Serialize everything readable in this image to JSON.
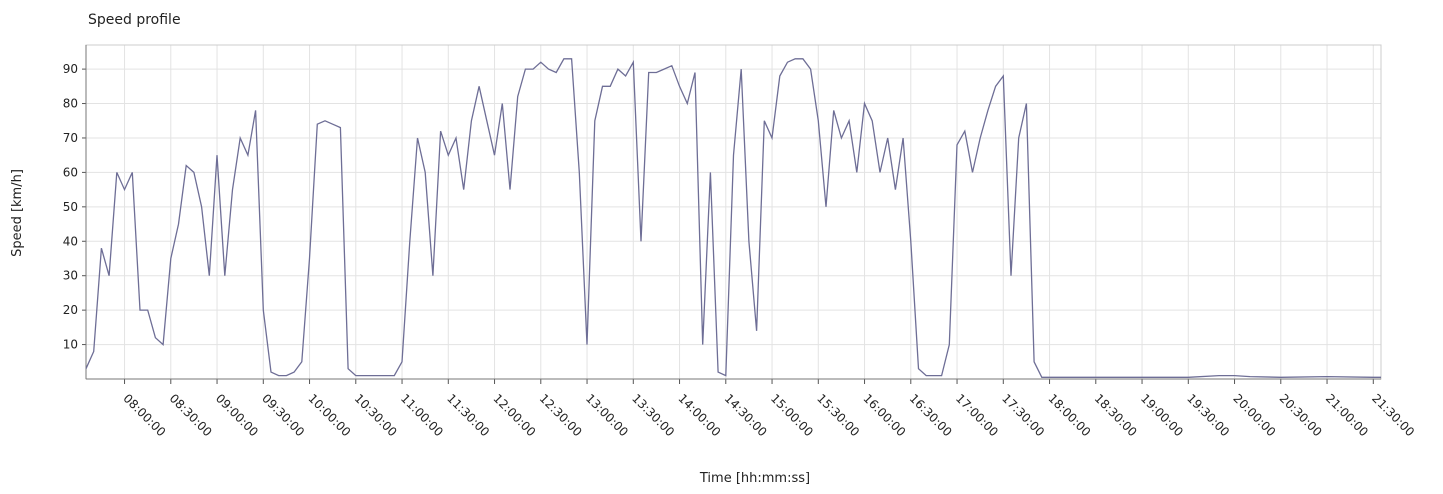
{
  "chart_data": {
    "type": "line",
    "title": "Speed profile",
    "x_label": "Time  [hh:mm:ss]",
    "y_label": "Speed [km/h]",
    "xlim": [
      "07:35:00",
      "21:35:00"
    ],
    "xticks": [
      "08:00:00",
      "08:30:00",
      "09:00:00",
      "09:30:00",
      "10:00:00",
      "10:30:00",
      "11:00:00",
      "11:30:00",
      "12:00:00",
      "12:30:00",
      "13:00:00",
      "13:30:00",
      "14:00:00",
      "14:30:00",
      "15:00:00",
      "15:30:00",
      "16:00:00",
      "16:30:00",
      "17:00:00",
      "17:30:00",
      "18:00:00",
      "18:30:00",
      "19:00:00",
      "19:30:00",
      "20:00:00",
      "20:30:00",
      "21:00:00",
      "21:30:00"
    ],
    "ylim": [
      0,
      97
    ],
    "yticks": [
      10,
      20,
      30,
      40,
      50,
      60,
      70,
      80,
      90
    ],
    "grid": true,
    "series": [
      {
        "name": "Speed",
        "color": "#6e6e96",
        "x": [
          "07:35:00",
          "07:40:00",
          "07:45:00",
          "07:50:00",
          "07:55:00",
          "08:00:00",
          "08:05:00",
          "08:10:00",
          "08:15:00",
          "08:20:00",
          "08:25:00",
          "08:30:00",
          "08:35:00",
          "08:40:00",
          "08:45:00",
          "08:50:00",
          "08:55:00",
          "09:00:00",
          "09:05:00",
          "09:10:00",
          "09:15:00",
          "09:20:00",
          "09:25:00",
          "09:30:00",
          "09:35:00",
          "09:40:00",
          "09:45:00",
          "09:50:00",
          "09:55:00",
          "10:00:00",
          "10:05:00",
          "10:10:00",
          "10:15:00",
          "10:20:00",
          "10:25:00",
          "10:30:00",
          "10:35:00",
          "10:40:00",
          "10:45:00",
          "10:50:00",
          "10:55:00",
          "11:00:00",
          "11:05:00",
          "11:10:00",
          "11:15:00",
          "11:20:00",
          "11:25:00",
          "11:30:00",
          "11:35:00",
          "11:40:00",
          "11:45:00",
          "11:50:00",
          "11:55:00",
          "12:00:00",
          "12:05:00",
          "12:10:00",
          "12:15:00",
          "12:20:00",
          "12:25:00",
          "12:30:00",
          "12:35:00",
          "12:40:00",
          "12:45:00",
          "12:50:00",
          "12:55:00",
          "13:00:00",
          "13:05:00",
          "13:10:00",
          "13:15:00",
          "13:20:00",
          "13:25:00",
          "13:30:00",
          "13:35:00",
          "13:40:00",
          "13:45:00",
          "13:50:00",
          "13:55:00",
          "14:00:00",
          "14:05:00",
          "14:10:00",
          "14:15:00",
          "14:20:00",
          "14:25:00",
          "14:30:00",
          "14:35:00",
          "14:40:00",
          "14:45:00",
          "14:50:00",
          "14:55:00",
          "15:00:00",
          "15:05:00",
          "15:10:00",
          "15:15:00",
          "15:20:00",
          "15:25:00",
          "15:30:00",
          "15:35:00",
          "15:40:00",
          "15:45:00",
          "15:50:00",
          "15:55:00",
          "16:00:00",
          "16:05:00",
          "16:10:00",
          "16:15:00",
          "16:20:00",
          "16:25:00",
          "16:30:00",
          "16:35:00",
          "16:40:00",
          "16:45:00",
          "16:50:00",
          "16:55:00",
          "17:00:00",
          "17:05:00",
          "17:10:00",
          "17:15:00",
          "17:20:00",
          "17:25:00",
          "17:30:00",
          "17:35:00",
          "17:40:00",
          "17:45:00",
          "17:50:00",
          "17:55:00",
          "18:00:00",
          "18:30:00",
          "19:00:00",
          "19:30:00",
          "19:50:00",
          "20:00:00",
          "20:10:00",
          "20:30:00",
          "21:00:00",
          "21:30:00",
          "21:35:00"
        ],
        "values": [
          3,
          8,
          38,
          30,
          60,
          55,
          60,
          20,
          20,
          12,
          10,
          35,
          45,
          62,
          60,
          50,
          30,
          65,
          30,
          55,
          70,
          65,
          78,
          20,
          2,
          1,
          1,
          2,
          5,
          35,
          74,
          75,
          74,
          73,
          3,
          1,
          1,
          1,
          1,
          1,
          1,
          5,
          40,
          70,
          60,
          30,
          72,
          65,
          70,
          55,
          75,
          85,
          75,
          65,
          80,
          55,
          82,
          90,
          90,
          92,
          90,
          89,
          93,
          93,
          60,
          10,
          75,
          85,
          85,
          90,
          88,
          92,
          40,
          89,
          89,
          90,
          91,
          85,
          80,
          89,
          10,
          60,
          2,
          1,
          65,
          90,
          40,
          14,
          75,
          70,
          88,
          92,
          93,
          93,
          90,
          75,
          50,
          78,
          70,
          75,
          60,
          80,
          75,
          60,
          70,
          55,
          70,
          40,
          3,
          1,
          1,
          1,
          10,
          68,
          72,
          60,
          70,
          78,
          85,
          88,
          30,
          70,
          80,
          5,
          0.5,
          0.5,
          0.5,
          0.5,
          0.5,
          1,
          1,
          0.7,
          0.5,
          0.7,
          0.5,
          0.5
        ]
      }
    ]
  }
}
